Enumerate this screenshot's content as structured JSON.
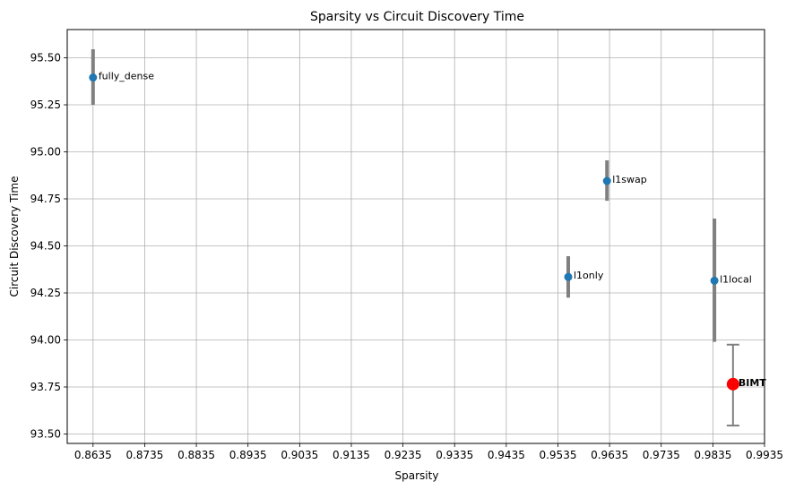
{
  "chart_data": {
    "type": "scatter",
    "title": "Sparsity vs Circuit Discovery Time",
    "xlabel": "Sparsity",
    "ylabel": "Circuit Discovery Time",
    "xlim": [
      0.8585,
      0.9935
    ],
    "ylim": [
      93.45,
      95.65
    ],
    "xticks": [
      "0.8635",
      "0.8735",
      "0.8835",
      "0.8935",
      "0.9035",
      "0.9135",
      "0.9235",
      "0.9335",
      "0.9435",
      "0.9535",
      "0.9635",
      "0.9735",
      "0.9835",
      "0.9935"
    ],
    "yticks": [
      "93.50",
      "93.75",
      "94.00",
      "94.25",
      "94.50",
      "94.75",
      "95.00",
      "95.25",
      "95.50"
    ],
    "grid": true,
    "points": [
      {
        "label": "fully_dense",
        "x": 0.8635,
        "y": 95.395,
        "err_low": 95.25,
        "err_high": 95.545,
        "color": "#1f77b4",
        "highlight": false
      },
      {
        "label": "l1swap",
        "x": 0.963,
        "y": 94.845,
        "err_low": 94.74,
        "err_high": 94.955,
        "color": "#1f77b4",
        "highlight": false
      },
      {
        "label": "l1only",
        "x": 0.9555,
        "y": 94.335,
        "err_low": 94.225,
        "err_high": 94.445,
        "color": "#1f77b4",
        "highlight": false
      },
      {
        "label": "l1local",
        "x": 0.9838,
        "y": 94.315,
        "err_low": 93.99,
        "err_high": 94.645,
        "color": "#1f77b4",
        "highlight": false
      },
      {
        "label": "BIMT",
        "x": 0.9874,
        "y": 93.765,
        "err_low": 93.545,
        "err_high": 93.975,
        "color": "#ff0000",
        "highlight": true
      }
    ],
    "errorbar_color": "#808080"
  }
}
